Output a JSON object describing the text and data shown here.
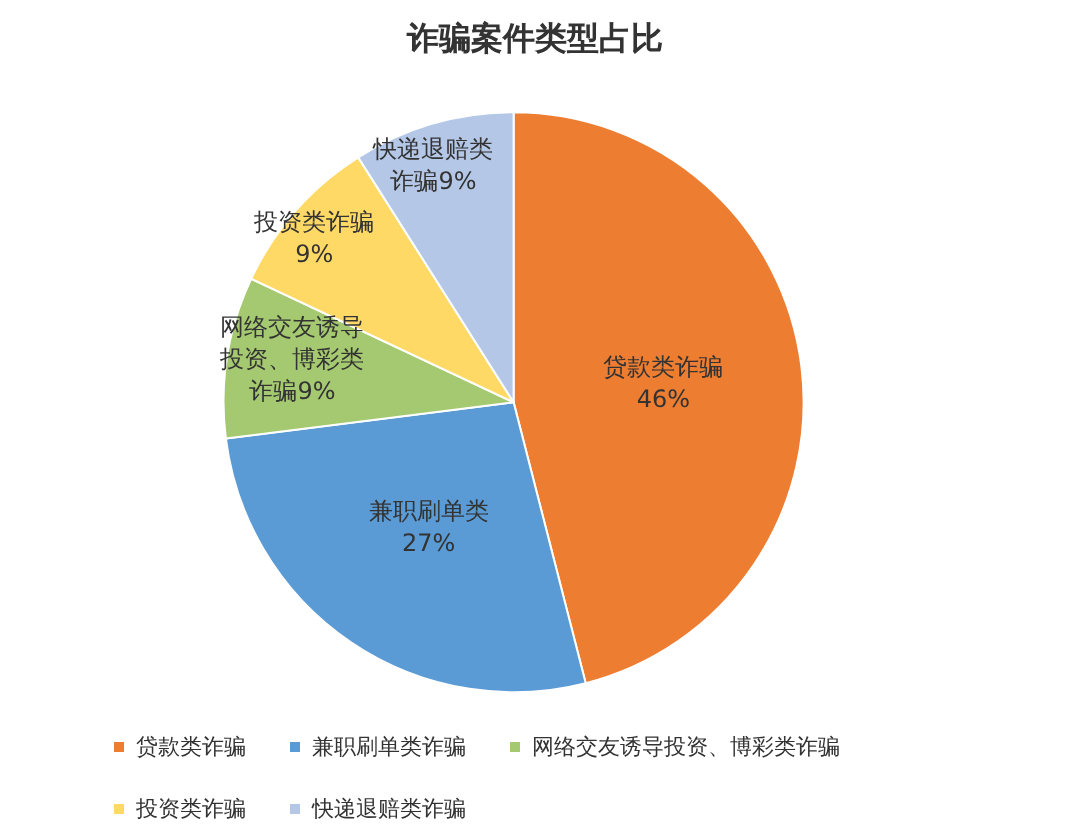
{
  "chart_data": {
    "type": "pie",
    "title": "诈骗案件类型占比",
    "categories": [
      "贷款类诈骗",
      "兼职刷单类诈骗",
      "网络交友诱导投资、博彩类诈骗",
      "投资类诈骗",
      "快递退赔类诈骗"
    ],
    "values": [
      46,
      27,
      9,
      9,
      9
    ],
    "colors": [
      "#ed7d31",
      "#5b9bd5",
      "#a5c970",
      "#ffd966",
      "#b4c7e7"
    ],
    "value_labels": [
      "贷款类诈骗46%",
      "兼职刷单类27%",
      "网络交友诱导投资、博彩类诈骗9%",
      "投资类诈骗9%",
      "快递退赔类诈骗9%"
    ],
    "legend": "bottom"
  }
}
